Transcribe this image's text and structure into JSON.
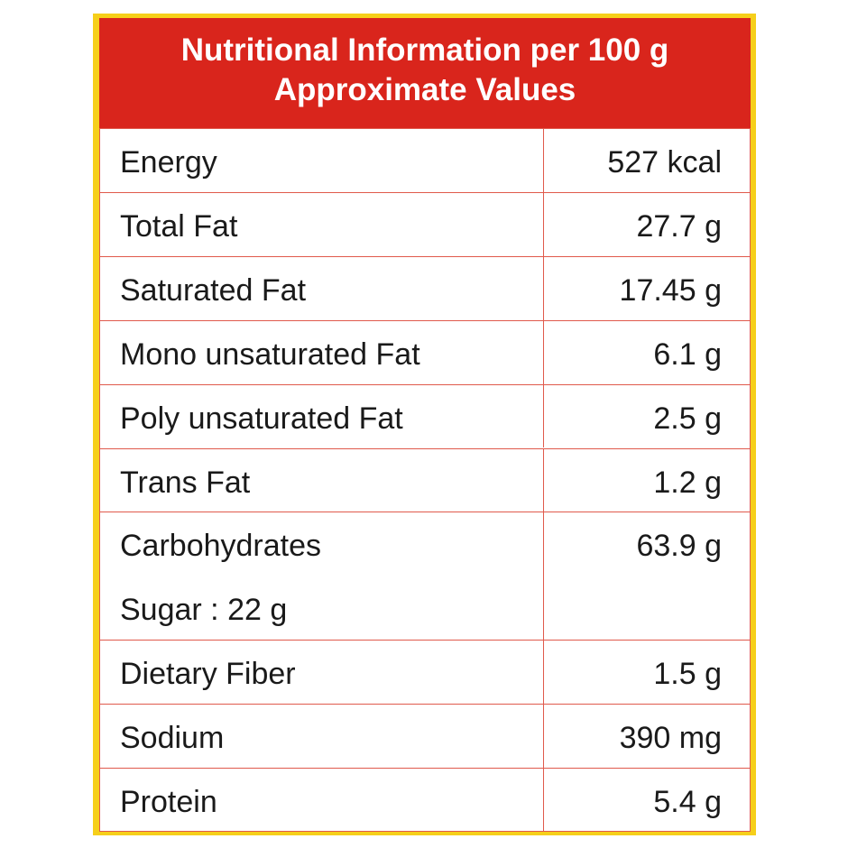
{
  "header": {
    "title": "Nutritional Information per 100 g",
    "subtitle": "Approximate Values"
  },
  "table": {
    "rows": [
      {
        "label": "Energy",
        "value": "527 kcal"
      },
      {
        "label": "Total Fat",
        "value": "27.7 g"
      },
      {
        "label": "Saturated Fat",
        "value": "17.45 g"
      },
      {
        "label": "Mono unsaturated Fat",
        "value": "6.1 g"
      },
      {
        "label": "Poly unsaturated Fat",
        "value": "2.5 g"
      },
      {
        "label": "Trans Fat",
        "value": "1.2 g"
      },
      {
        "label": "Carbohydrates",
        "value": "63.9 g",
        "note": "Sugar : 22 g"
      },
      {
        "label": "Dietary Fiber",
        "value": "1.5 g"
      },
      {
        "label": "Sodium",
        "value": "390 mg"
      },
      {
        "label": "Protein",
        "value": "5.4 g"
      }
    ]
  }
}
